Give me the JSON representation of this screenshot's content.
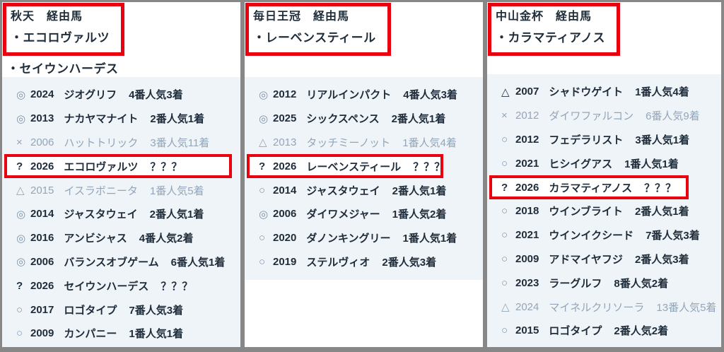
{
  "palette": {
    "frame_gray": "#878787",
    "panel_white": "#ffffff",
    "list_blue": "#eff4f9",
    "text_dark": "#1f2c3a",
    "text_dim": "#93a5b8",
    "symbol_gray": "#7e93a8",
    "highlight_red": "#e8000f"
  },
  "columns": [
    {
      "title": "秋天　経由馬",
      "boxed_names": [
        "・エコロヴァルツ"
      ],
      "extra_names": [
        "・セイウンハーデス"
      ],
      "rows": [
        {
          "sym": "◎",
          "year": "2024",
          "name": "ジオグリフ",
          "result": "4番人気3着"
        },
        {
          "sym": "◎",
          "year": "2013",
          "name": "ナカヤマナイト",
          "result": "2番人気1着"
        },
        {
          "sym": "×",
          "year": "2006",
          "name": "ハットトリック",
          "result": "3番人気11着",
          "dim": true
        },
        {
          "sym": "?",
          "year": "2026",
          "name": "エコロヴァルツ",
          "result": "？？？",
          "boxed": true,
          "sym_dark": true
        },
        {
          "sym": "△",
          "year": "2015",
          "name": "イスラボニータ",
          "result": "1番人気5着",
          "dim": true
        },
        {
          "sym": "◎",
          "year": "2014",
          "name": "ジャスタウェイ",
          "result": "2番人気1着"
        },
        {
          "sym": "◎",
          "year": "2016",
          "name": "アンビシャス",
          "result": "4番人気2着"
        },
        {
          "sym": "◎",
          "year": "2006",
          "name": "バランスオブゲーム",
          "result": "6番人気1着"
        },
        {
          "sym": "?",
          "year": "2026",
          "name": "セイウンハーデス",
          "result": "？？？",
          "sym_dark": true
        },
        {
          "sym": "○",
          "year": "2017",
          "name": "ロゴタイプ",
          "result": "7番人気3着"
        },
        {
          "sym": "○",
          "year": "2009",
          "name": "カンパニー",
          "result": "1番人気1着"
        }
      ]
    },
    {
      "title": "毎日王冠　経由馬",
      "boxed_names": [
        "・レーベンスティール"
      ],
      "extra_names": [],
      "rows": [
        {
          "sym": "◎",
          "year": "2012",
          "name": "リアルインパクト",
          "result": "4番人気3着"
        },
        {
          "sym": "◎",
          "year": "2025",
          "name": "シックスペンス",
          "result": "2番人気1着"
        },
        {
          "sym": "△",
          "year": "2013",
          "name": "タッチミーノット",
          "result": "1番人気4着",
          "dim": true
        },
        {
          "sym": "?",
          "year": "2026",
          "name": "レーベンスティール",
          "result": "？？？",
          "boxed": true,
          "sym_dark": true
        },
        {
          "sym": "○",
          "year": "2014",
          "name": "ジャスタウェイ",
          "result": "2番人気1着"
        },
        {
          "sym": "◎",
          "year": "2006",
          "name": "ダイワメジャー",
          "result": "1番人気2着"
        },
        {
          "sym": "○",
          "year": "2020",
          "name": "ダノンキングリー",
          "result": "1番人気1着"
        },
        {
          "sym": "○",
          "year": "2019",
          "name": "ステルヴィオ",
          "result": "2番人気3着"
        }
      ]
    },
    {
      "title": "中山金杯　経由馬",
      "boxed_names": [
        "・カラマティアノス"
      ],
      "extra_names": [],
      "rows": [
        {
          "sym": "△",
          "year": "2007",
          "name": "シャドウゲイト",
          "result": "1番人気4着",
          "sym_dark": true
        },
        {
          "sym": "×",
          "year": "2012",
          "name": "ダイワファルコン",
          "result": "6番人気9着",
          "dim": true
        },
        {
          "sym": "○",
          "year": "2012",
          "name": "フェデラリスト",
          "result": "3番人気1着"
        },
        {
          "sym": "○",
          "year": "2021",
          "name": "ヒシイグアス",
          "result": "1番人気1着"
        },
        {
          "sym": "?",
          "year": "2026",
          "name": "カラマティアノス",
          "result": "？？？",
          "boxed": true,
          "sym_dark": true
        },
        {
          "sym": "○",
          "year": "2018",
          "name": "ウインブライト",
          "result": "2番人気1着"
        },
        {
          "sym": "○",
          "year": "2021",
          "name": "ウインイクシード",
          "result": "7番人気3着"
        },
        {
          "sym": "○",
          "year": "2009",
          "name": "アドマイヤフジ",
          "result": "2番人気3着"
        },
        {
          "sym": "○",
          "year": "2023",
          "name": "ラーグルフ",
          "result": "8番人気2着"
        },
        {
          "sym": "△",
          "year": "2024",
          "name": "マイネルクリソーラ",
          "result": "13番人気5着",
          "dim": true
        },
        {
          "sym": "○",
          "year": "2015",
          "name": "ロゴタイプ",
          "result": "2番人気2着"
        }
      ]
    }
  ]
}
